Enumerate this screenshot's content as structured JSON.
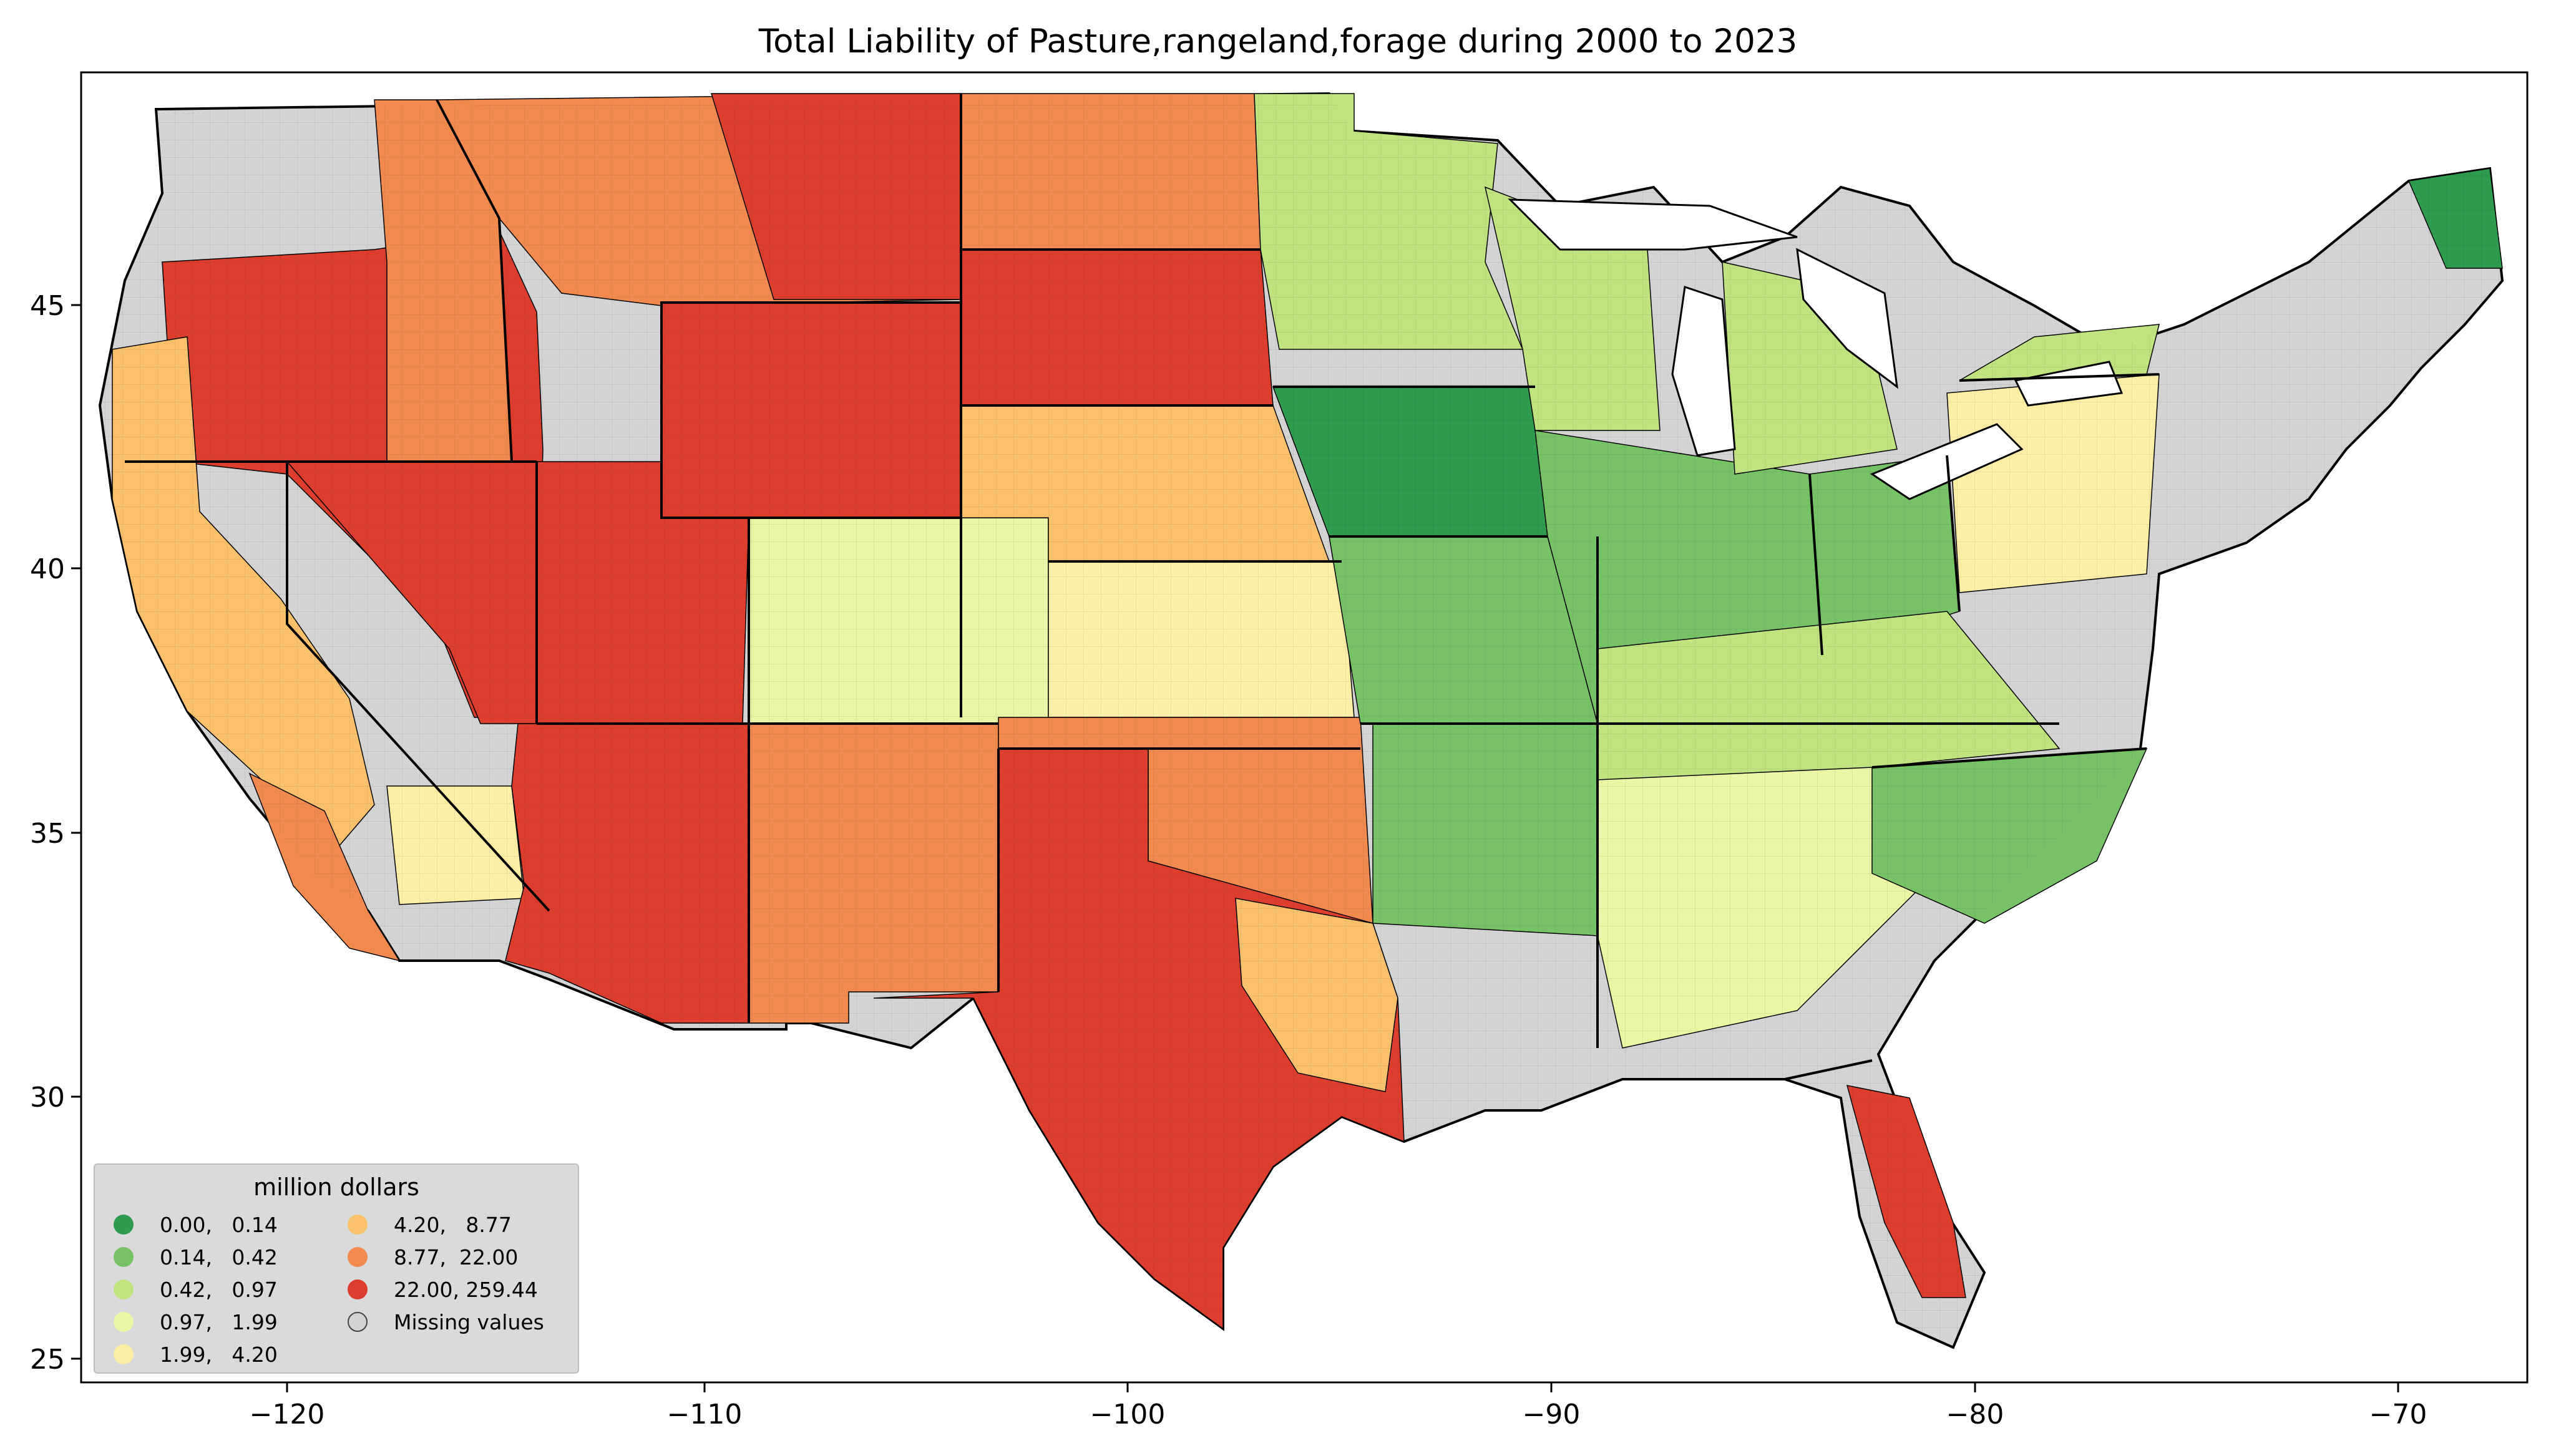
{
  "title": "Total Liability of Pasture,rangeland,forage during 2000 to 2023",
  "axes": {
    "x_ticks": [
      "−120",
      "−110",
      "−100",
      "−90",
      "−80",
      "−70"
    ],
    "y_ticks": [
      "25",
      "30",
      "35",
      "40",
      "45"
    ],
    "xlim": [
      -125,
      -66.5
    ],
    "ylim": [
      24.5,
      49.5
    ]
  },
  "legend": {
    "title": "million dollars",
    "placement": "lower-left",
    "items": [
      {
        "label": "0.00,   0.14",
        "color": "#2e9b4f"
      },
      {
        "label": "0.14,   0.42",
        "color": "#77c267"
      },
      {
        "label": "0.42,   0.97",
        "color": "#bfe47f"
      },
      {
        "label": "0.97,   1.99",
        "color": "#eaf6a3"
      },
      {
        "label": "1.99,   4.20",
        "color": "#fdeea6"
      },
      {
        "label": "4.20,   8.77",
        "color": "#fbc06c"
      },
      {
        "label": "8.77,  22.00",
        "color": "#f28a50"
      },
      {
        "label": "22.00, 259.44",
        "color": "#dc3d2d"
      },
      {
        "label": "Missing values",
        "color": "#d3d3d3"
      }
    ]
  },
  "colors": {
    "missing": "#d3d3d3",
    "border": "#000000"
  }
}
